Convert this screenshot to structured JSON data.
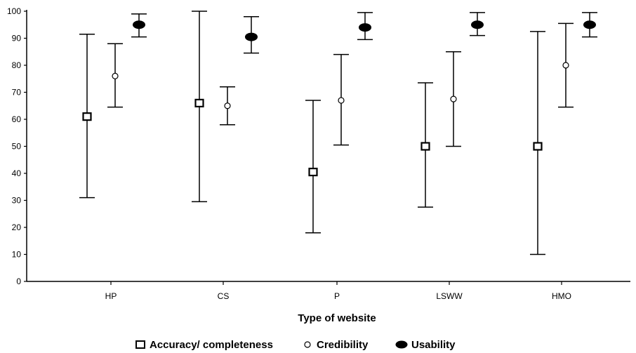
{
  "chart_data": {
    "type": "errorbar",
    "title": "",
    "xlabel": "Type of website",
    "ylabel": "",
    "ylim": [
      0,
      100
    ],
    "yticks": [
      0,
      10,
      20,
      30,
      40,
      50,
      60,
      70,
      80,
      90,
      100
    ],
    "grid": false,
    "legend_position": "bottom",
    "categories": [
      "HP",
      "CS",
      "P",
      "LSWW",
      "HMO"
    ],
    "series": [
      {
        "name": "Accuracy/ completeness",
        "marker": "square",
        "mean": [
          61,
          66,
          40.5,
          50,
          50
        ],
        "upper": [
          91.5,
          100,
          67,
          73.5,
          92.5
        ],
        "lower": [
          31,
          29.5,
          18,
          27.5,
          10
        ]
      },
      {
        "name": "Credibility",
        "marker": "circle",
        "mean": [
          76,
          65,
          67,
          67.5,
          80
        ],
        "upper": [
          88,
          72,
          84,
          85,
          95.5
        ],
        "lower": [
          64.5,
          58,
          50.5,
          50,
          64.5
        ]
      },
      {
        "name": "Usability",
        "marker": "filled-ellipse",
        "mean": [
          95,
          90.5,
          94,
          95,
          95
        ],
        "upper": [
          99,
          98,
          99.5,
          99.5,
          99.5
        ],
        "lower": [
          90.5,
          84.5,
          89.5,
          91,
          90.5
        ]
      }
    ]
  }
}
